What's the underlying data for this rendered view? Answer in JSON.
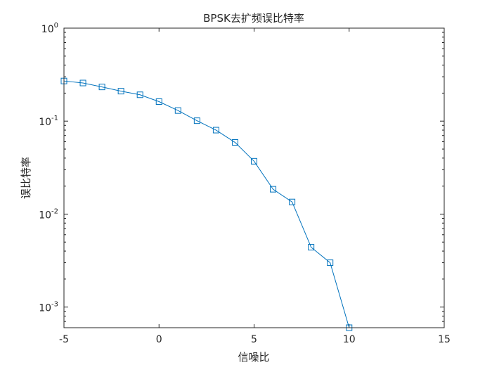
{
  "chart_data": {
    "type": "line",
    "title": "BPSK去扩频误比特率",
    "xlabel": "信噪比",
    "ylabel": "误比特率",
    "xlim": [
      -5,
      15
    ],
    "ylim": [
      0.0006,
      1
    ],
    "yscale": "log",
    "grid": false,
    "legend": "none",
    "marker": "square",
    "line_color": "#0072BD",
    "xticks": [
      -5,
      0,
      5,
      10,
      15
    ],
    "xtick_labels": [
      "-5",
      "0",
      "5",
      "10",
      "15"
    ],
    "yticks": [
      {
        "value": 1,
        "base": "10",
        "exp": "0"
      },
      {
        "value": 0.1,
        "base": "10",
        "exp": "-1"
      },
      {
        "value": 0.01,
        "base": "10",
        "exp": "-2"
      },
      {
        "value": 0.001,
        "base": "10",
        "exp": "-3"
      }
    ],
    "series": [
      {
        "x": [
          -5,
          -4,
          -3,
          -2,
          -1,
          0,
          1,
          2,
          3,
          4,
          5,
          6,
          7,
          8,
          9,
          10
        ],
        "y": [
          0.27,
          0.257,
          0.233,
          0.21,
          0.192,
          0.162,
          0.13,
          0.101,
          0.08,
          0.059,
          0.037,
          0.0185,
          0.0135,
          0.0044,
          0.003,
          0.0006
        ]
      }
    ]
  }
}
